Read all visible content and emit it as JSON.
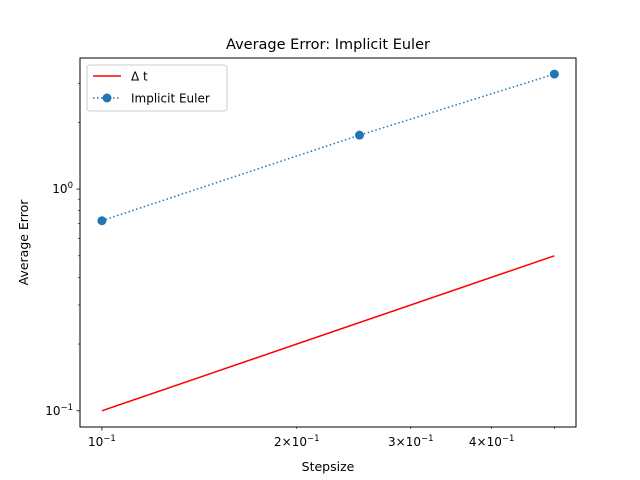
{
  "chart_data": {
    "type": "line",
    "title": "Average Error: Implicit Euler",
    "xlabel": "Stepsize",
    "ylabel": "Average Error",
    "xscale": "log",
    "yscale": "log",
    "xlim": [
      0.0925,
      0.54
    ],
    "ylim": [
      0.0845,
      3.9
    ],
    "grid": false,
    "legend_location": "upper left",
    "x_major_ticks": [
      {
        "value": 0.1,
        "base": "10",
        "exp": "−1"
      }
    ],
    "x_minor_ticks": [
      {
        "value": 0.2,
        "mant": "2",
        "base": "10",
        "exp": "−1"
      },
      {
        "value": 0.3,
        "mant": "3",
        "base": "10",
        "exp": "−1"
      },
      {
        "value": 0.4,
        "mant": "4",
        "base": "10",
        "exp": "−1"
      }
    ],
    "x_minor_unlabeled": [
      0.5
    ],
    "y_major_ticks": [
      {
        "value": 0.1,
        "base": "10",
        "exp": "−1"
      },
      {
        "value": 1,
        "base": "10",
        "exp": "0"
      }
    ],
    "y_minor_unlabeled": [
      0.2,
      0.3,
      0.4,
      0.5,
      0.6,
      0.7,
      0.8,
      0.9,
      2,
      3
    ],
    "series": [
      {
        "name": "Δ t",
        "color": "#ff0000",
        "style": "solid",
        "marker": "none",
        "x": [
          0.1,
          0.5
        ],
        "y": [
          0.1,
          0.5
        ]
      },
      {
        "name": "Implicit Euler",
        "color": "#1f77b4",
        "style": "dotted",
        "marker": "circle",
        "x": [
          0.1,
          0.25,
          0.5
        ],
        "y": [
          0.72,
          1.75,
          3.3
        ]
      }
    ]
  }
}
